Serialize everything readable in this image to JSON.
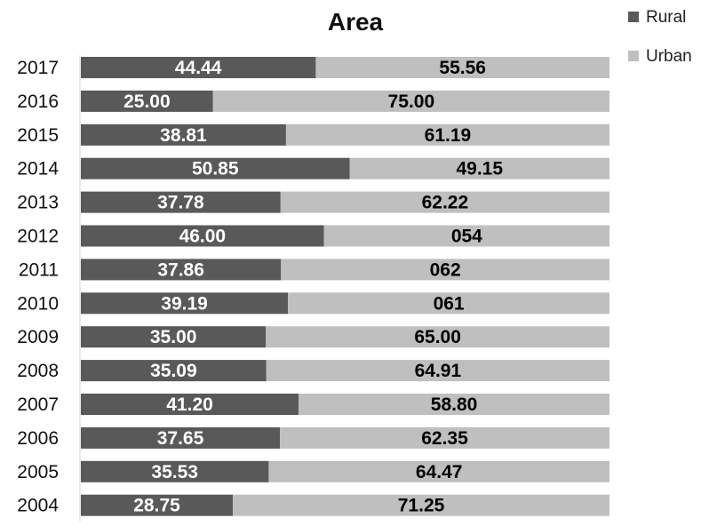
{
  "chart_data": {
    "type": "bar",
    "orientation": "horizontal",
    "stacked": true,
    "title": "Area",
    "xlabel": "",
    "ylabel": "",
    "xlim": [
      0,
      100
    ],
    "grid": false,
    "legend_position": "top-right",
    "categories": [
      "2017",
      "2016",
      "2015",
      "2014",
      "2013",
      "2012",
      "2011",
      "2010",
      "2009",
      "2008",
      "2007",
      "2006",
      "2005",
      "2004"
    ],
    "series": [
      {
        "name": "Rural",
        "color": "#595959",
        "values": [
          44.44,
          25.0,
          38.81,
          50.85,
          37.78,
          46.0,
          37.86,
          39.19,
          35.0,
          35.09,
          41.2,
          37.65,
          35.53,
          28.75
        ],
        "labels": [
          "44.44",
          "25.00",
          "38.81",
          "50.85",
          "37.78",
          "46.00",
          "37.86",
          "39.19",
          "35.00",
          "35.09",
          "41.20",
          "37.65",
          "35.53",
          "28.75"
        ]
      },
      {
        "name": "Urban",
        "color": "#bfbfbf",
        "values": [
          55.56,
          75.0,
          61.19,
          49.15,
          62.22,
          54.0,
          62.14,
          60.81,
          65.0,
          64.91,
          58.8,
          62.35,
          64.47,
          71.25
        ],
        "labels": [
          "55.56",
          "75.00",
          "61.19",
          "49.15",
          "62.22",
          "054",
          "062",
          "061",
          "65.00",
          "64.91",
          "58.80",
          "62.35",
          "64.47",
          "71.25"
        ]
      }
    ]
  }
}
